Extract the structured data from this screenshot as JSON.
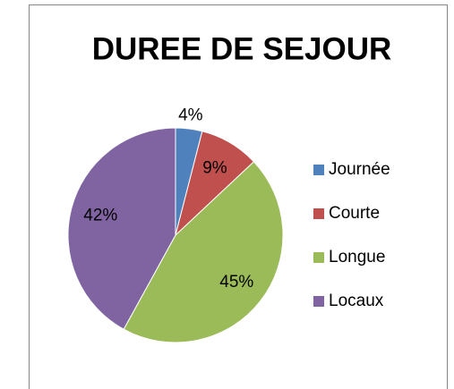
{
  "chart_data": {
    "type": "pie",
    "title": "DUREE DE SEJOUR",
    "categories": [
      "Journée",
      "Courte",
      "Longue",
      "Locaux"
    ],
    "values": [
      4,
      9,
      45,
      42
    ],
    "value_labels": [
      "4%",
      "9%",
      "45%",
      "42%"
    ],
    "colors": [
      "#4f81bd",
      "#c0504d",
      "#9bbb59",
      "#8064a2"
    ],
    "legend": "right"
  }
}
